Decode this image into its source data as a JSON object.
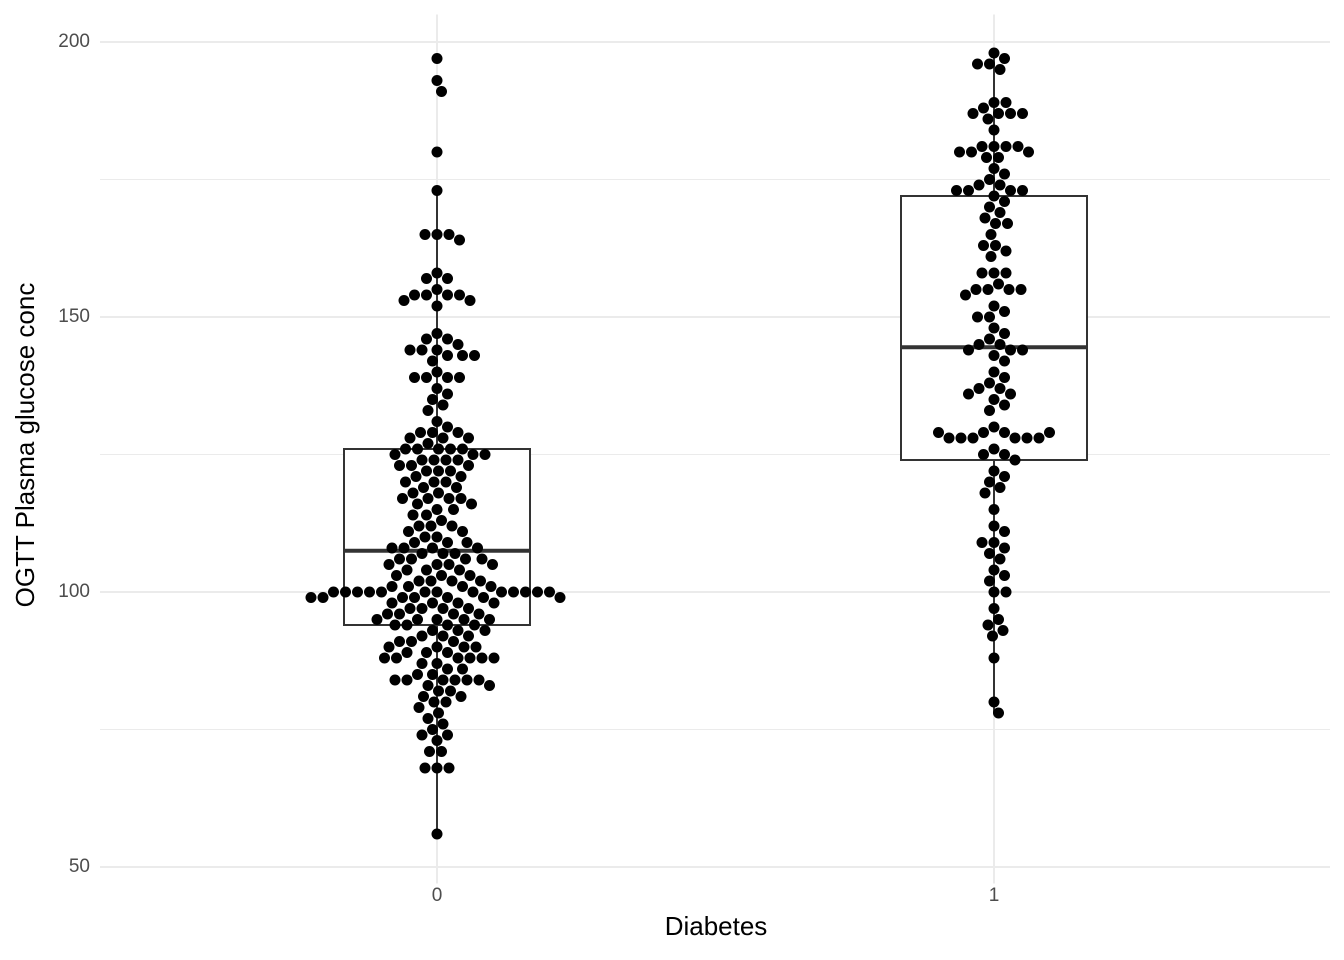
{
  "chart_data": {
    "type": "box",
    "x_label": "Diabetes",
    "y_label": "OGTT Plasma glucose conc",
    "categories": [
      "0",
      "1"
    ],
    "boxes": [
      {
        "whislo": 56,
        "q1": 94,
        "med": 107.5,
        "q3": 126,
        "whishi": 173
      },
      {
        "whislo": 78,
        "q1": 124,
        "med": 144.5,
        "q3": 172,
        "whishi": 198
      }
    ],
    "points": [
      [
        197,
        193,
        191,
        180,
        173,
        165,
        165,
        165,
        164,
        158,
        157,
        157,
        155,
        154,
        154,
        154,
        154,
        153,
        153,
        152,
        147,
        146,
        146,
        145,
        144,
        144,
        144,
        143,
        143,
        143,
        142,
        140,
        139,
        139,
        139,
        139,
        137,
        136,
        135,
        134,
        133,
        131,
        130,
        129,
        129,
        129,
        128,
        128,
        128,
        127,
        126,
        126,
        126,
        126,
        126,
        125,
        125,
        125,
        124,
        124,
        124,
        124,
        123,
        123,
        123,
        122,
        122,
        122,
        121,
        121,
        120,
        120,
        120,
        119,
        119,
        118,
        118,
        117,
        117,
        117,
        117,
        116,
        116,
        115,
        115,
        114,
        114,
        113,
        112,
        112,
        112,
        111,
        111,
        110,
        110,
        109,
        109,
        109,
        108,
        108,
        108,
        108,
        107,
        107,
        107,
        106,
        106,
        106,
        106,
        105,
        105,
        105,
        105,
        104,
        104,
        104,
        103,
        103,
        103,
        102,
        102,
        102,
        102,
        101,
        101,
        101,
        101,
        100,
        100,
        100,
        100,
        100,
        100,
        100,
        100,
        100,
        100,
        100,
        100,
        100,
        99,
        99,
        99,
        99,
        99,
        99,
        99,
        98,
        98,
        98,
        98,
        97,
        97,
        97,
        97,
        96,
        96,
        96,
        96,
        95,
        95,
        95,
        95,
        95,
        94,
        94,
        94,
        94,
        93,
        93,
        93,
        92,
        92,
        92,
        91,
        91,
        91,
        90,
        90,
        90,
        90,
        89,
        89,
        89,
        88,
        88,
        88,
        88,
        88,
        88,
        87,
        87,
        86,
        86,
        85,
        85,
        84,
        84,
        84,
        84,
        84,
        84,
        83,
        83,
        82,
        82,
        81,
        81,
        80,
        80,
        79,
        78,
        77,
        76,
        75,
        74,
        74,
        73,
        71,
        71,
        68,
        68,
        68,
        56
      ],
      [
        198,
        197,
        196,
        196,
        195,
        189,
        189,
        188,
        187,
        187,
        187,
        187,
        186,
        184,
        181,
        181,
        181,
        181,
        180,
        180,
        180,
        179,
        179,
        177,
        176,
        175,
        174,
        174,
        173,
        173,
        173,
        173,
        172,
        171,
        170,
        169,
        168,
        167,
        167,
        165,
        163,
        163,
        162,
        161,
        158,
        158,
        158,
        156,
        155,
        155,
        155,
        155,
        154,
        152,
        151,
        150,
        150,
        148,
        147,
        146,
        145,
        145,
        144,
        144,
        144,
        143,
        142,
        140,
        139,
        138,
        137,
        137,
        136,
        136,
        135,
        134,
        133,
        130,
        129,
        129,
        128,
        128,
        128,
        128,
        128,
        128,
        129,
        129,
        126,
        125,
        125,
        124,
        122,
        121,
        120,
        119,
        118,
        115,
        112,
        111,
        109,
        109,
        108,
        107,
        106,
        104,
        103,
        102,
        100,
        100,
        97,
        95,
        94,
        93,
        92,
        88,
        80,
        78
      ]
    ],
    "point_color": "#000000",
    "box_color": "#333333",
    "ylim": [
      47,
      205
    ],
    "yticks": [
      50,
      100,
      150,
      200
    ],
    "minor_yticks": [
      75,
      125,
      175
    ],
    "grid": true
  }
}
